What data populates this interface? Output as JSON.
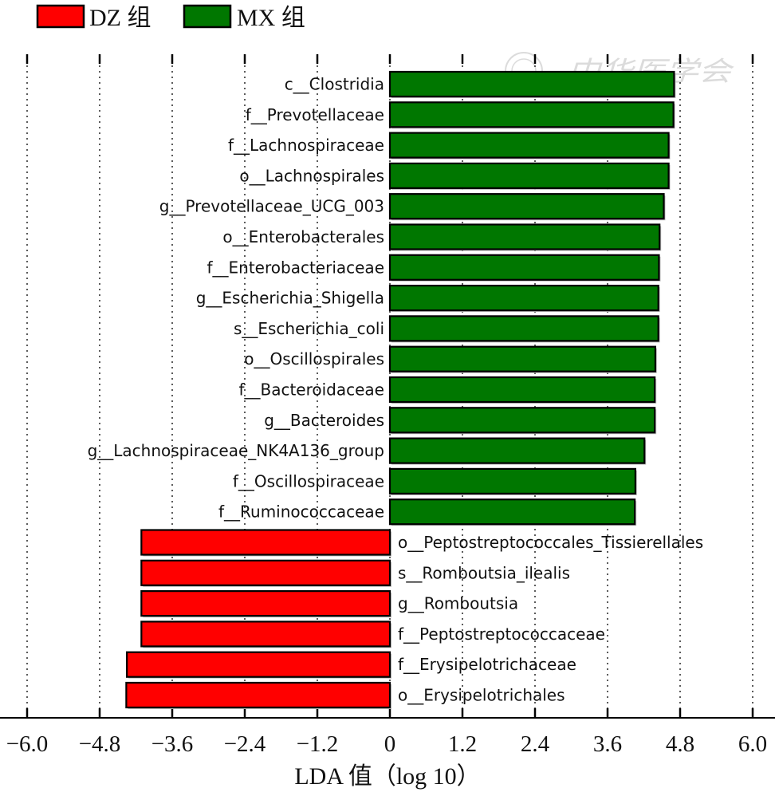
{
  "colors": {
    "DZ": "#ff0000",
    "MX": "#007700"
  },
  "legend": [
    {
      "label": "DZ 组",
      "color": "#ff0000"
    },
    {
      "label": "MX 组",
      "color": "#007700"
    }
  ],
  "watermark": "中华医学会",
  "chart_data": {
    "type": "bar",
    "orientation": "horizontal",
    "xlabel": "LDA 值（log 10）",
    "xlim": [
      -6.0,
      6.0
    ],
    "xticks": [
      -6.0,
      -4.8,
      -3.6,
      -2.4,
      -1.2,
      0,
      1.2,
      2.4,
      3.6,
      4.8,
      6.0
    ],
    "xtick_labels": [
      "−6.0",
      "−4.8",
      "−3.6",
      "−2.4",
      "−1.2",
      "0",
      "1.2",
      "2.4",
      "3.6",
      "4.8",
      "6.0"
    ],
    "grid": "vertical dotted",
    "legend_position": "top-left",
    "series": [
      {
        "name": "DZ 组",
        "color": "#ff0000"
      },
      {
        "name": "MX 组",
        "color": "#007700"
      }
    ],
    "categories": [
      "c__Clostridia",
      "f__Prevotellaceae",
      "f__Lachnospiraceae",
      "o__Lachnospirales",
      "g__Prevotellaceae_UCG_003",
      "o__Enterobacterales",
      "f__Enterobacteriaceae",
      "g__Escherichia_Shigella",
      "s__Escherichia_coli",
      "o__Oscillospirales",
      "f__Bacteroidaceae",
      "g__Bacteroides",
      "g__Lachnospiraceae_NK4A136_group",
      "f__Oscillospiraceae",
      "f__Ruminococcaceae",
      "o__Peptostreptococcales_Tissierellales",
      "s__Romboutsia_ilealis",
      "g__Romboutsia",
      "f__Peptostreptococcaceae",
      "f__Erysipelotrichaceae",
      "o__Erysipelotrichales"
    ],
    "values": [
      4.7,
      4.69,
      4.61,
      4.61,
      4.53,
      4.46,
      4.45,
      4.44,
      4.44,
      4.39,
      4.38,
      4.38,
      4.21,
      4.06,
      4.05,
      -4.11,
      -4.11,
      -4.11,
      -4.11,
      -4.35,
      -4.36
    ],
    "groups": [
      "MX",
      "MX",
      "MX",
      "MX",
      "MX",
      "MX",
      "MX",
      "MX",
      "MX",
      "MX",
      "MX",
      "MX",
      "MX",
      "MX",
      "MX",
      "DZ",
      "DZ",
      "DZ",
      "DZ",
      "DZ",
      "DZ"
    ]
  }
}
